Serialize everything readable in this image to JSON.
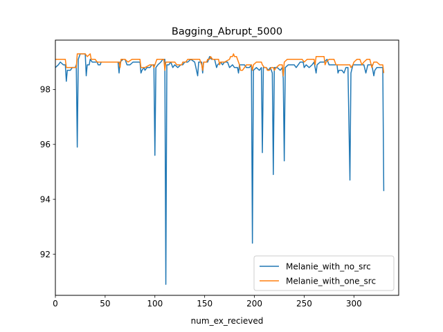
{
  "chart_data": {
    "type": "line",
    "title": "Bagging_Abrupt_5000",
    "xlabel": "num_ex_recieved",
    "ylabel": "",
    "xlim": [
      0,
      345
    ],
    "ylim": [
      90.5,
      99.8
    ],
    "xticks": [
      0,
      50,
      100,
      150,
      200,
      250,
      300
    ],
    "yticks": [
      92,
      94,
      96,
      98
    ],
    "grid": false,
    "legend_position": "lower right",
    "series": [
      {
        "name": "Melanie_with_no_src",
        "color": "#1f77b4",
        "points": [
          [
            0,
            98.8
          ],
          [
            3,
            98.9
          ],
          [
            5,
            99.0
          ],
          [
            8,
            98.9
          ],
          [
            10,
            98.9
          ],
          [
            11,
            98.3
          ],
          [
            12,
            98.7
          ],
          [
            15,
            98.7
          ],
          [
            17,
            98.8
          ],
          [
            20,
            98.8
          ],
          [
            21,
            98.9
          ],
          [
            22,
            95.9
          ],
          [
            23,
            99.1
          ],
          [
            25,
            99.3
          ],
          [
            28,
            99.3
          ],
          [
            30,
            99.3
          ],
          [
            31,
            98.5
          ],
          [
            32,
            98.9
          ],
          [
            34,
            98.9
          ],
          [
            35,
            99.1
          ],
          [
            37,
            99.0
          ],
          [
            40,
            99.0
          ],
          [
            42,
            99.0
          ],
          [
            43,
            98.9
          ],
          [
            45,
            98.9
          ],
          [
            46,
            99.0
          ],
          [
            48,
            99.0
          ],
          [
            50,
            99.0
          ],
          [
            52,
            99.0
          ],
          [
            55,
            99.0
          ],
          [
            60,
            99.0
          ],
          [
            63,
            99.0
          ],
          [
            64,
            98.6
          ],
          [
            65,
            99.0
          ],
          [
            68,
            99.1
          ],
          [
            70,
            99.1
          ],
          [
            72,
            98.9
          ],
          [
            75,
            98.9
          ],
          [
            78,
            99.0
          ],
          [
            82,
            99.0
          ],
          [
            85,
            99.0
          ],
          [
            86,
            98.6
          ],
          [
            87,
            98.7
          ],
          [
            89,
            98.8
          ],
          [
            90,
            98.7
          ],
          [
            92,
            98.8
          ],
          [
            95,
            98.8
          ],
          [
            97,
            98.9
          ],
          [
            99,
            98.9
          ],
          [
            100,
            95.6
          ],
          [
            101,
            98.8
          ],
          [
            103,
            98.9
          ],
          [
            106,
            99.0
          ],
          [
            108,
            99.1
          ],
          [
            110,
            99.1
          ],
          [
            111,
            90.9
          ],
          [
            112,
            98.9
          ],
          [
            114,
            98.9
          ],
          [
            116,
            99.0
          ],
          [
            118,
            98.8
          ],
          [
            120,
            98.9
          ],
          [
            123,
            98.8
          ],
          [
            126,
            98.9
          ],
          [
            128,
            98.9
          ],
          [
            130,
            99.0
          ],
          [
            133,
            99.0
          ],
          [
            136,
            99.1
          ],
          [
            140,
            99.0
          ],
          [
            143,
            98.5
          ],
          [
            144,
            99.0
          ],
          [
            147,
            99.0
          ],
          [
            148,
            98.6
          ],
          [
            149,
            99.0
          ],
          [
            153,
            99.0
          ],
          [
            155,
            99.2
          ],
          [
            157,
            99.1
          ],
          [
            160,
            99.1
          ],
          [
            162,
            98.8
          ],
          [
            163,
            98.9
          ],
          [
            166,
            99.0
          ],
          [
            168,
            98.9
          ],
          [
            170,
            99.0
          ],
          [
            173,
            99.0
          ],
          [
            175,
            98.8
          ],
          [
            178,
            98.9
          ],
          [
            180,
            98.8
          ],
          [
            183,
            98.8
          ],
          [
            184,
            98.6
          ],
          [
            185,
            98.9
          ],
          [
            190,
            98.9
          ],
          [
            192,
            98.8
          ],
          [
            195,
            98.8
          ],
          [
            197,
            98.9
          ],
          [
            198,
            92.4
          ],
          [
            199,
            98.7
          ],
          [
            202,
            98.8
          ],
          [
            205,
            98.7
          ],
          [
            207,
            98.8
          ],
          [
            208,
            95.7
          ],
          [
            209,
            98.8
          ],
          [
            212,
            98.8
          ],
          [
            214,
            98.7
          ],
          [
            216,
            98.8
          ],
          [
            218,
            98.6
          ],
          [
            219,
            94.9
          ],
          [
            220,
            98.8
          ],
          [
            223,
            98.8
          ],
          [
            226,
            98.7
          ],
          [
            228,
            98.8
          ],
          [
            229,
            98.4
          ],
          [
            230,
            95.4
          ],
          [
            231,
            98.8
          ],
          [
            234,
            98.9
          ],
          [
            237,
            98.9
          ],
          [
            240,
            98.9
          ],
          [
            242,
            98.8
          ],
          [
            244,
            98.9
          ],
          [
            246,
            99.0
          ],
          [
            249,
            99.0
          ],
          [
            250,
            98.8
          ],
          [
            252,
            98.9
          ],
          [
            255,
            98.8
          ],
          [
            258,
            98.9
          ],
          [
            260,
            99.0
          ],
          [
            262,
            98.6
          ],
          [
            263,
            98.9
          ],
          [
            266,
            99.0
          ],
          [
            270,
            99.0
          ],
          [
            273,
            99.1
          ],
          [
            275,
            98.9
          ],
          [
            277,
            98.9
          ],
          [
            280,
            98.9
          ],
          [
            283,
            98.9
          ],
          [
            284,
            98.6
          ],
          [
            285,
            98.7
          ],
          [
            288,
            98.7
          ],
          [
            290,
            98.6
          ],
          [
            292,
            98.8
          ],
          [
            294,
            98.8
          ],
          [
            296,
            94.7
          ],
          [
            297,
            98.6
          ],
          [
            299,
            98.9
          ],
          [
            302,
            98.9
          ],
          [
            305,
            98.9
          ],
          [
            308,
            98.9
          ],
          [
            310,
            98.9
          ],
          [
            312,
            98.6
          ],
          [
            314,
            98.9
          ],
          [
            316,
            98.9
          ],
          [
            318,
            98.9
          ],
          [
            320,
            98.5
          ],
          [
            321,
            98.7
          ],
          [
            323,
            98.8
          ],
          [
            326,
            98.8
          ],
          [
            328,
            98.8
          ],
          [
            329,
            98.8
          ],
          [
            330,
            94.3
          ]
        ]
      },
      {
        "name": "Melanie_with_one_src",
        "color": "#ff7f0e",
        "points": [
          [
            0,
            99.1
          ],
          [
            4,
            99.1
          ],
          [
            8,
            99.1
          ],
          [
            10,
            99.1
          ],
          [
            11,
            98.8
          ],
          [
            15,
            98.8
          ],
          [
            20,
            98.8
          ],
          [
            21,
            98.8
          ],
          [
            22,
            99.3
          ],
          [
            26,
            99.3
          ],
          [
            30,
            99.3
          ],
          [
            32,
            99.2
          ],
          [
            35,
            99.3
          ],
          [
            36,
            99.1
          ],
          [
            40,
            99.1
          ],
          [
            42,
            99.0
          ],
          [
            50,
            99.0
          ],
          [
            55,
            99.0
          ],
          [
            60,
            99.0
          ],
          [
            64,
            99.0
          ],
          [
            65,
            98.8
          ],
          [
            66,
            99.1
          ],
          [
            70,
            99.1
          ],
          [
            73,
            99.0
          ],
          [
            77,
            99.1
          ],
          [
            80,
            99.1
          ],
          [
            85,
            99.1
          ],
          [
            86,
            98.8
          ],
          [
            90,
            98.8
          ],
          [
            95,
            98.9
          ],
          [
            98,
            98.9
          ],
          [
            99,
            98.8
          ],
          [
            100,
            98.9
          ],
          [
            102,
            99.1
          ],
          [
            106,
            99.1
          ],
          [
            109,
            99.1
          ],
          [
            110,
            98.7
          ],
          [
            111,
            99.0
          ],
          [
            115,
            99.0
          ],
          [
            120,
            99.0
          ],
          [
            122,
            98.9
          ],
          [
            125,
            98.9
          ],
          [
            127,
            98.9
          ],
          [
            128,
            99.0
          ],
          [
            131,
            99.0
          ],
          [
            133,
            99.1
          ],
          [
            136,
            99.1
          ],
          [
            140,
            99.1
          ],
          [
            145,
            99.1
          ],
          [
            147,
            98.9
          ],
          [
            148,
            98.7
          ],
          [
            149,
            99.0
          ],
          [
            152,
            99.0
          ],
          [
            153,
            99.1
          ],
          [
            155,
            99.1
          ],
          [
            156,
            99.2
          ],
          [
            158,
            99.1
          ],
          [
            160,
            99.1
          ],
          [
            164,
            99.1
          ],
          [
            165,
            98.9
          ],
          [
            166,
            99.0
          ],
          [
            170,
            99.0
          ],
          [
            175,
            99.1
          ],
          [
            176,
            99.2
          ],
          [
            178,
            99.2
          ],
          [
            179,
            99.3
          ],
          [
            180,
            99.2
          ],
          [
            182,
            99.2
          ],
          [
            183,
            99.1
          ],
          [
            185,
            98.9
          ],
          [
            186,
            98.7
          ],
          [
            188,
            98.7
          ],
          [
            190,
            98.8
          ],
          [
            192,
            98.9
          ],
          [
            195,
            98.9
          ],
          [
            197,
            98.9
          ],
          [
            198,
            98.7
          ],
          [
            199,
            98.9
          ],
          [
            202,
            99.0
          ],
          [
            205,
            99.0
          ],
          [
            207,
            99.0
          ],
          [
            208,
            98.9
          ],
          [
            210,
            98.8
          ],
          [
            212,
            98.8
          ],
          [
            213,
            98.7
          ],
          [
            215,
            98.7
          ],
          [
            217,
            98.8
          ],
          [
            219,
            98.8
          ],
          [
            220,
            98.7
          ],
          [
            222,
            98.8
          ],
          [
            225,
            98.9
          ],
          [
            228,
            98.9
          ],
          [
            229,
            98.5
          ],
          [
            230,
            99.0
          ],
          [
            233,
            99.1
          ],
          [
            236,
            99.1
          ],
          [
            240,
            99.1
          ],
          [
            244,
            99.1
          ],
          [
            248,
            99.1
          ],
          [
            250,
            99.0
          ],
          [
            253,
            99.1
          ],
          [
            257,
            99.1
          ],
          [
            260,
            99.1
          ],
          [
            261,
            98.9
          ],
          [
            262,
            99.2
          ],
          [
            266,
            99.2
          ],
          [
            270,
            99.2
          ],
          [
            271,
            98.9
          ],
          [
            272,
            99.0
          ],
          [
            275,
            99.1
          ],
          [
            280,
            99.1
          ],
          [
            282,
            98.9
          ],
          [
            286,
            98.9
          ],
          [
            290,
            98.9
          ],
          [
            296,
            98.9
          ],
          [
            297,
            98.8
          ],
          [
            299,
            98.9
          ],
          [
            300,
            99.0
          ],
          [
            303,
            99.1
          ],
          [
            306,
            99.1
          ],
          [
            308,
            98.9
          ],
          [
            310,
            99.0
          ],
          [
            313,
            99.1
          ],
          [
            316,
            99.1
          ],
          [
            318,
            98.8
          ],
          [
            320,
            99.0
          ],
          [
            323,
            99.0
          ],
          [
            326,
            98.9
          ],
          [
            328,
            98.9
          ],
          [
            329,
            98.9
          ],
          [
            330,
            98.6
          ]
        ]
      }
    ]
  }
}
